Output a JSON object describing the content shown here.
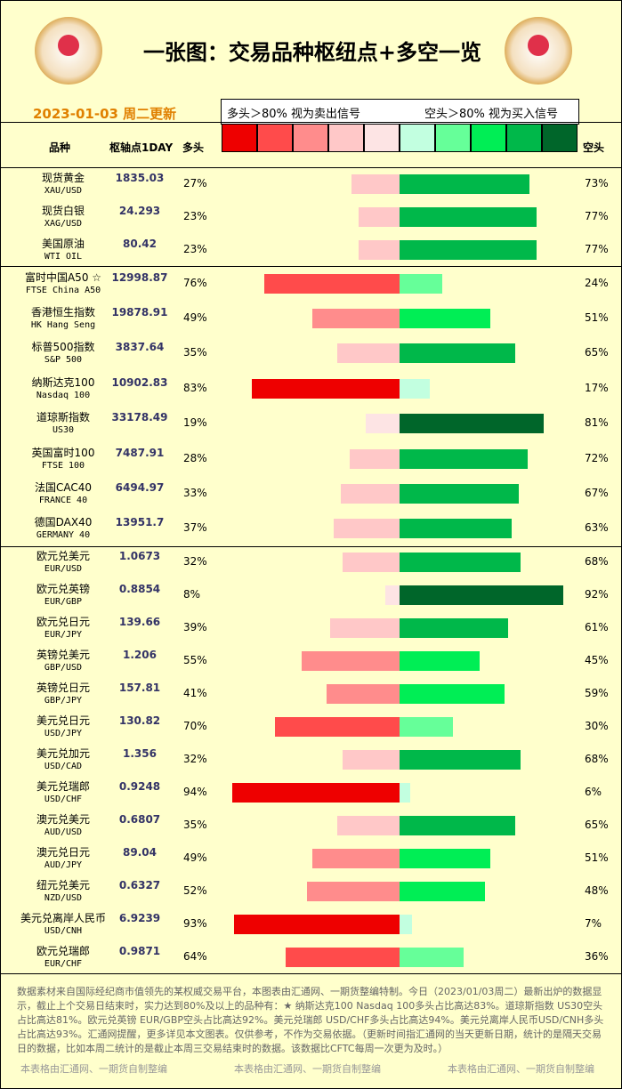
{
  "header": {
    "title": "一张图：交易品种枢纽点+多空一览",
    "date": "2023-01-03 周二更新"
  },
  "legend": {
    "long_text": "多头＞80% 视为卖出信号",
    "short_text": "空头＞80% 视为买入信号",
    "long_colors": [
      "#fde4e4",
      "#ffc8c8",
      "#ff8c8c",
      "#ff4b4b",
      "#ee0000"
    ],
    "short_colors": [
      "#c2ffe0",
      "#66ff99",
      "#00ee55",
      "#00b84a",
      "#00662a"
    ]
  },
  "columns": {
    "name": "品种",
    "pivot": "枢轴点1DAY",
    "long": "多头",
    "short": "空头"
  },
  "groups": [
    {
      "rows": [
        {
          "name": "现货黄金",
          "code": "XAU/USD",
          "pivot": "1835.03",
          "long": {
            "value": 27,
            "label": "27%"
          },
          "short": {
            "value": 73,
            "label": "73%"
          }
        },
        {
          "name": "现货白银",
          "code": "XAG/USD",
          "pivot": "24.293",
          "long": {
            "value": 23,
            "label": "23%"
          },
          "short": {
            "value": 77,
            "label": "77%"
          }
        },
        {
          "name": "美国原油",
          "code": "WTI OIL",
          "pivot": "80.42",
          "long": {
            "value": 23,
            "label": "23%"
          },
          "short": {
            "value": 77,
            "label": "77%"
          }
        }
      ]
    },
    {
      "rows": [
        {
          "name": "富时中国A50 ☆",
          "code": "FTSE China A50",
          "pivot": "12998.87",
          "long": {
            "value": 76,
            "label": "76%"
          },
          "short": {
            "value": 24,
            "label": "24%"
          }
        },
        {
          "name": "香港恒生指数",
          "code": "HK Hang Seng",
          "pivot": "19878.91",
          "long": {
            "value": 49,
            "label": "49%"
          },
          "short": {
            "value": 51,
            "label": "51%"
          }
        },
        {
          "name": "标普500指数",
          "code": "S&P 500",
          "pivot": "3837.64",
          "long": {
            "value": 35,
            "label": "35%"
          },
          "short": {
            "value": 65,
            "label": "65%"
          }
        },
        {
          "name": "纳斯达克100",
          "code": "Nasdaq 100",
          "pivot": "10902.83",
          "long": {
            "value": 83,
            "label": "83%"
          },
          "short": {
            "value": 17,
            "label": "17%"
          }
        },
        {
          "name": "道琼斯指数",
          "code": "US30",
          "pivot": "33178.49",
          "long": {
            "value": 19,
            "label": "19%"
          },
          "short": {
            "value": 81,
            "label": "81%"
          }
        },
        {
          "name": "英国富时100",
          "code": "FTSE 100",
          "pivot": "7487.91",
          "long": {
            "value": 28,
            "label": "28%"
          },
          "short": {
            "value": 72,
            "label": "72%"
          }
        },
        {
          "name": "法国CAC40",
          "code": "FRANCE 40",
          "pivot": "6494.97",
          "long": {
            "value": 33,
            "label": "33%"
          },
          "short": {
            "value": 67,
            "label": "67%"
          }
        },
        {
          "name": "德国DAX40",
          "code": "GERMANY 40",
          "pivot": "13951.7",
          "long": {
            "value": 37,
            "label": "37%"
          },
          "short": {
            "value": 63,
            "label": "63%"
          }
        }
      ]
    },
    {
      "rows": [
        {
          "name": "欧元兑美元",
          "code": "EUR/USD",
          "pivot": "1.0673",
          "long": {
            "value": 32,
            "label": "32%"
          },
          "short": {
            "value": 68,
            "label": "68%"
          }
        },
        {
          "name": "欧元兑英镑",
          "code": "EUR/GBP",
          "pivot": "0.8854",
          "long": {
            "value": 8,
            "label": "8%"
          },
          "short": {
            "value": 92,
            "label": "92%"
          }
        },
        {
          "name": "欧元兑日元",
          "code": "EUR/JPY",
          "pivot": "139.66",
          "long": {
            "value": 39,
            "label": "39%"
          },
          "short": {
            "value": 61,
            "label": "61%"
          }
        },
        {
          "name": "英镑兑美元",
          "code": "GBP/USD",
          "pivot": "1.206",
          "long": {
            "value": 55,
            "label": "55%"
          },
          "short": {
            "value": 45,
            "label": "45%"
          }
        },
        {
          "name": "英镑兑日元",
          "code": "GBP/JPY",
          "pivot": "157.81",
          "long": {
            "value": 41,
            "label": "41%"
          },
          "short": {
            "value": 59,
            "label": "59%"
          }
        },
        {
          "name": "美元兑日元",
          "code": "USD/JPY",
          "pivot": "130.82",
          "long": {
            "value": 70,
            "label": "70%"
          },
          "short": {
            "value": 30,
            "label": "30%"
          }
        },
        {
          "name": "美元兑加元",
          "code": "USD/CAD",
          "pivot": "1.356",
          "long": {
            "value": 32,
            "label": "32%"
          },
          "short": {
            "value": 68,
            "label": "68%"
          }
        },
        {
          "name": "美元兑瑞郎",
          "code": "USD/CHF",
          "pivot": "0.9248",
          "long": {
            "value": 94,
            "label": "94%"
          },
          "short": {
            "value": 6,
            "label": "6%"
          }
        },
        {
          "name": "澳元兑美元",
          "code": "AUD/USD",
          "pivot": "0.6807",
          "long": {
            "value": 35,
            "label": "35%"
          },
          "short": {
            "value": 65,
            "label": "65%"
          }
        },
        {
          "name": "澳元兑日元",
          "code": "AUD/JPY",
          "pivot": "89.04",
          "long": {
            "value": 49,
            "label": "49%"
          },
          "short": {
            "value": 51,
            "label": "51%"
          }
        },
        {
          "name": "纽元兑美元",
          "code": "NZD/USD",
          "pivot": "0.6327",
          "long": {
            "value": 52,
            "label": "52%"
          },
          "short": {
            "value": 48,
            "label": "48%"
          }
        },
        {
          "name": "美元兑离岸人民币",
          "code": "USD/CNH",
          "pivot": "6.9239",
          "long": {
            "value": 93,
            "label": "93%"
          },
          "short": {
            "value": 7,
            "label": "7%"
          }
        },
        {
          "name": "欧元兑瑞郎",
          "code": "EUR/CHF",
          "pivot": "0.9871",
          "long": {
            "value": 64,
            "label": "64%"
          },
          "short": {
            "value": 36,
            "label": "36%"
          }
        }
      ]
    }
  ],
  "footer": {
    "text": "数据素材来自国际经纪商市值领先的某权威交易平台，本图表由汇通网、一期货整编特制。今日（2023/01/03周二）最新出炉的数据显示，截止上个交易日结束时，实力达到80%及以上的品种有：★ 纳斯达克100 Nasdaq 100多头占比高达83%。道琼斯指数 US30空头占比高达81%。欧元兑英镑 EUR/GBP空头占比高达92%。美元兑瑞郎 USD/CHF多头占比高达94%。美元兑离岸人民币USD/CNH多头占比高达93%。汇通网提醒，更多详见本文图表。仅供参考，不作为交易依据。（更新时间指汇通网的当天更新日期，统计的是隔天交易日的数据，比如本周二统计的是截止本周三交易结束时的数据。该数据比CFTC每周一次更为及时。）",
    "credits": [
      "本表格由汇通网、一期货自制整编",
      "本表格由汇通网、一期货自制整编",
      "本表格由汇通网、一期货自制整编"
    ]
  }
}
